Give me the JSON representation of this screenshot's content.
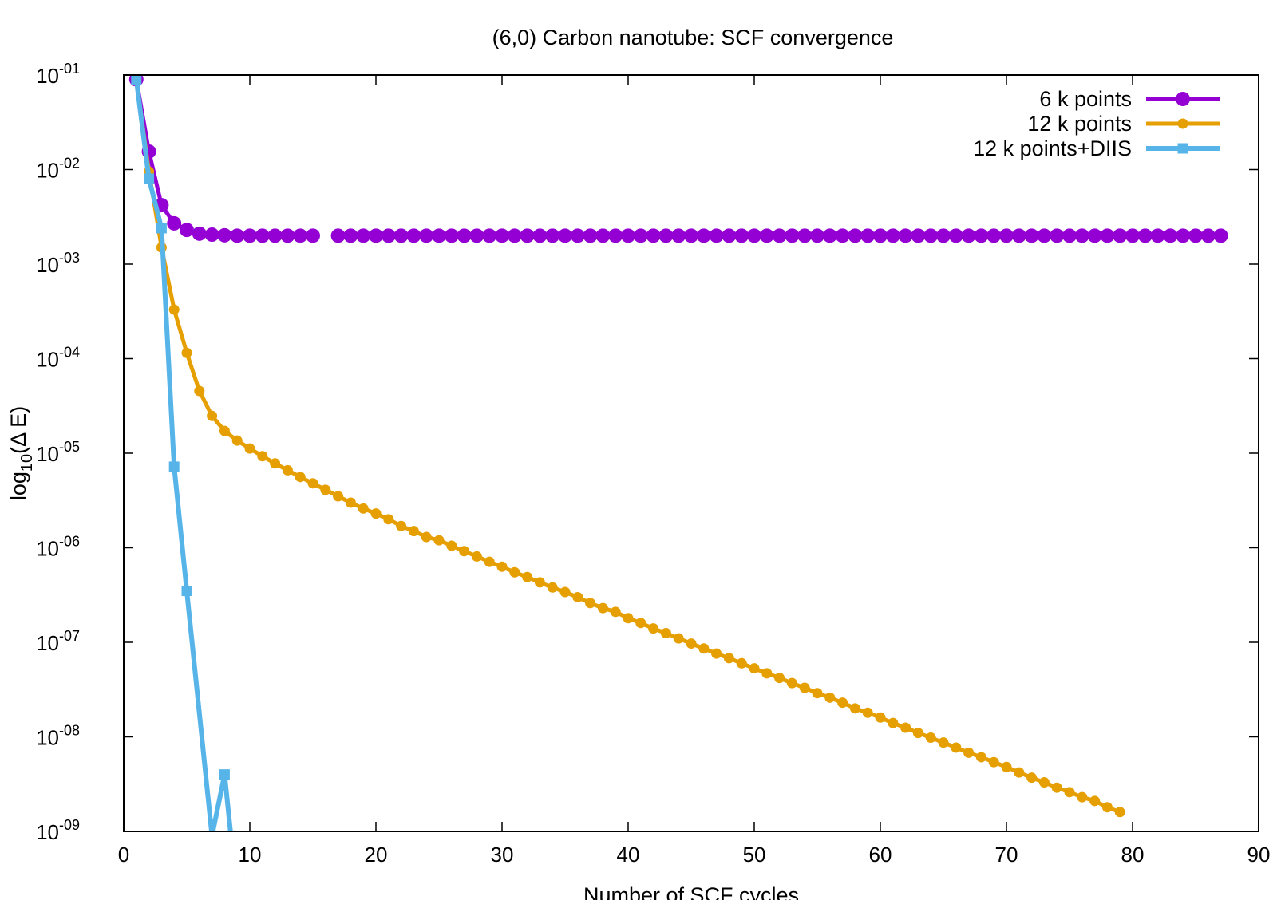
{
  "chart_data": {
    "type": "line",
    "title": "(6,0) Carbon nanotube: SCF convergence",
    "xlabel": "Number of SCF cycles",
    "ylabel": {
      "base": "log",
      "subscript": "10",
      "rest": "(Δ E)"
    },
    "xlim": [
      0,
      90
    ],
    "ylim": [
      1e-09,
      0.1
    ],
    "yscale": "log",
    "xticks": [
      0,
      10,
      20,
      30,
      40,
      50,
      60,
      70,
      80,
      90
    ],
    "yticks": [
      {
        "value": 0.1,
        "base": "10",
        "exp": "-01"
      },
      {
        "value": 0.01,
        "base": "10",
        "exp": "-02"
      },
      {
        "value": 0.001,
        "base": "10",
        "exp": "-03"
      },
      {
        "value": 0.0001,
        "base": "10",
        "exp": "-04"
      },
      {
        "value": 1e-05,
        "base": "10",
        "exp": "-05"
      },
      {
        "value": 1e-06,
        "base": "10",
        "exp": "-06"
      },
      {
        "value": 1e-07,
        "base": "10",
        "exp": "-07"
      },
      {
        "value": 1e-08,
        "base": "10",
        "exp": "-08"
      },
      {
        "value": 1e-09,
        "base": "10",
        "exp": "-09"
      }
    ],
    "grid": false,
    "legend_position": "top-right",
    "series": [
      {
        "name": "6 k points",
        "color": "#9400d3",
        "marker": "circle",
        "points": [
          [
            1,
            0.09
          ],
          [
            2,
            0.0155
          ],
          [
            3,
            0.0042
          ],
          [
            4,
            0.0027
          ],
          [
            5,
            0.0023
          ],
          [
            6,
            0.0021
          ],
          [
            7,
            0.00205
          ],
          [
            8,
            0.00202
          ],
          [
            9,
            0.002
          ],
          [
            10,
            0.002
          ],
          [
            11,
            0.002
          ],
          [
            12,
            0.002
          ],
          [
            13,
            0.002
          ],
          [
            14,
            0.002
          ],
          [
            15,
            0.002
          ],
          null,
          [
            17,
            0.002
          ],
          [
            18,
            0.002
          ],
          [
            19,
            0.002
          ],
          [
            20,
            0.002
          ],
          [
            21,
            0.002
          ],
          [
            22,
            0.002
          ],
          [
            23,
            0.002
          ],
          [
            24,
            0.002
          ],
          [
            25,
            0.002
          ],
          [
            26,
            0.002
          ],
          [
            27,
            0.002
          ],
          [
            28,
            0.002
          ],
          [
            29,
            0.002
          ],
          [
            30,
            0.002
          ],
          [
            31,
            0.002
          ],
          [
            32,
            0.002
          ],
          [
            33,
            0.002
          ],
          [
            34,
            0.002
          ],
          [
            35,
            0.002
          ],
          [
            36,
            0.002
          ],
          [
            37,
            0.002
          ],
          [
            38,
            0.002
          ],
          [
            39,
            0.002
          ],
          [
            40,
            0.002
          ],
          [
            41,
            0.002
          ],
          [
            42,
            0.002
          ],
          [
            43,
            0.002
          ],
          [
            44,
            0.002
          ],
          [
            45,
            0.002
          ],
          [
            46,
            0.002
          ],
          [
            47,
            0.002
          ],
          [
            48,
            0.002
          ],
          [
            49,
            0.002
          ],
          [
            50,
            0.002
          ],
          [
            51,
            0.002
          ],
          [
            52,
            0.002
          ],
          [
            53,
            0.002
          ],
          [
            54,
            0.002
          ],
          [
            55,
            0.002
          ],
          [
            56,
            0.002
          ],
          [
            57,
            0.002
          ],
          [
            58,
            0.002
          ],
          [
            59,
            0.002
          ],
          [
            60,
            0.002
          ],
          [
            61,
            0.002
          ],
          [
            62,
            0.002
          ],
          [
            63,
            0.002
          ],
          [
            64,
            0.002
          ],
          [
            65,
            0.002
          ],
          [
            66,
            0.002
          ],
          [
            67,
            0.002
          ],
          [
            68,
            0.002
          ],
          [
            69,
            0.002
          ],
          [
            70,
            0.002
          ],
          [
            71,
            0.002
          ],
          [
            72,
            0.002
          ],
          [
            73,
            0.002
          ],
          [
            74,
            0.002
          ],
          [
            75,
            0.002
          ],
          [
            76,
            0.002
          ],
          [
            77,
            0.002
          ],
          [
            78,
            0.002
          ],
          [
            79,
            0.002
          ],
          [
            80,
            0.002
          ],
          [
            81,
            0.002
          ],
          [
            82,
            0.002
          ],
          [
            83,
            0.002
          ],
          [
            84,
            0.002
          ],
          [
            85,
            0.002
          ],
          [
            86,
            0.002
          ],
          [
            87,
            0.002
          ]
        ]
      },
      {
        "name": "12 k points",
        "color": "#e69f00",
        "marker": "circle-small",
        "points": [
          [
            1,
            0.09
          ],
          [
            2,
            0.0095
          ],
          [
            3,
            0.0015
          ],
          [
            4,
            0.00033
          ],
          [
            5,
            0.000115
          ],
          [
            6,
            4.55e-05
          ],
          [
            7,
            2.48e-05
          ],
          [
            8,
            1.72e-05
          ],
          [
            9,
            1.36e-05
          ],
          [
            10,
            1.12e-05
          ],
          [
            11,
            9.3e-06
          ],
          [
            12,
            7.8e-06
          ],
          [
            13,
            6.6e-06
          ],
          [
            14,
            5.6e-06
          ],
          [
            15,
            4.8e-06
          ],
          [
            16,
            4.1e-06
          ],
          [
            17,
            3.5e-06
          ],
          [
            18,
            3e-06
          ],
          [
            19,
            2.6e-06
          ],
          [
            20,
            2.3e-06
          ],
          [
            21,
            2e-06
          ],
          [
            22,
            1.7e-06
          ],
          [
            23,
            1.5e-06
          ],
          [
            24,
            1.3e-06
          ],
          [
            25,
            1.2e-06
          ],
          [
            26,
            1.05e-06
          ],
          [
            27,
            9.2e-07
          ],
          [
            28,
            8.1e-07
          ],
          [
            29,
            7.1e-07
          ],
          [
            30,
            6.3e-07
          ],
          [
            31,
            5.5e-07
          ],
          [
            32,
            4.9e-07
          ],
          [
            33,
            4.3e-07
          ],
          [
            34,
            3.8e-07
          ],
          [
            35,
            3.4e-07
          ],
          [
            36,
            3e-07
          ],
          [
            37,
            2.6e-07
          ],
          [
            38,
            2.3e-07
          ],
          [
            39,
            2.1e-07
          ],
          [
            40,
            1.8e-07
          ],
          [
            41,
            1.6e-07
          ],
          [
            42,
            1.4e-07
          ],
          [
            43,
            1.25e-07
          ],
          [
            44,
            1.1e-07
          ],
          [
            45,
            9.7e-08
          ],
          [
            46,
            8.6e-08
          ],
          [
            47,
            7.6e-08
          ],
          [
            48,
            6.8e-08
          ],
          [
            49,
            6e-08
          ],
          [
            50,
            5.3e-08
          ],
          [
            51,
            4.7e-08
          ],
          [
            52,
            4.2e-08
          ],
          [
            53,
            3.7e-08
          ],
          [
            54,
            3.3e-08
          ],
          [
            55,
            2.9e-08
          ],
          [
            56,
            2.6e-08
          ],
          [
            57,
            2.3e-08
          ],
          [
            58,
            2e-08
          ],
          [
            59,
            1.8e-08
          ],
          [
            60,
            1.6e-08
          ],
          [
            61,
            1.4e-08
          ],
          [
            62,
            1.25e-08
          ],
          [
            63,
            1.1e-08
          ],
          [
            64,
            9.8e-09
          ],
          [
            65,
            8.7e-09
          ],
          [
            66,
            7.7e-09
          ],
          [
            67,
            6.8e-09
          ],
          [
            68,
            6.1e-09
          ],
          [
            69,
            5.4e-09
          ],
          [
            70,
            4.8e-09
          ],
          [
            71,
            4.2e-09
          ],
          [
            72,
            3.7e-09
          ],
          [
            73,
            3.3e-09
          ],
          [
            74,
            2.9e-09
          ],
          [
            75,
            2.6e-09
          ],
          [
            76,
            2.3e-09
          ],
          [
            77,
            2.1e-09
          ],
          [
            78,
            1.8e-09
          ],
          [
            79,
            1.6e-09
          ]
        ]
      },
      {
        "name": "12 k points+DIIS",
        "color": "#56b4e9",
        "marker": "square",
        "points": [
          [
            1,
            0.09
          ],
          [
            2,
            0.008
          ],
          [
            3,
            0.0024
          ],
          [
            4,
            7.2e-06
          ],
          [
            5,
            3.5e-07
          ],
          [
            7,
            9e-10
          ],
          [
            8,
            4e-09
          ],
          [
            8.5,
            9e-10
          ]
        ]
      }
    ]
  }
}
